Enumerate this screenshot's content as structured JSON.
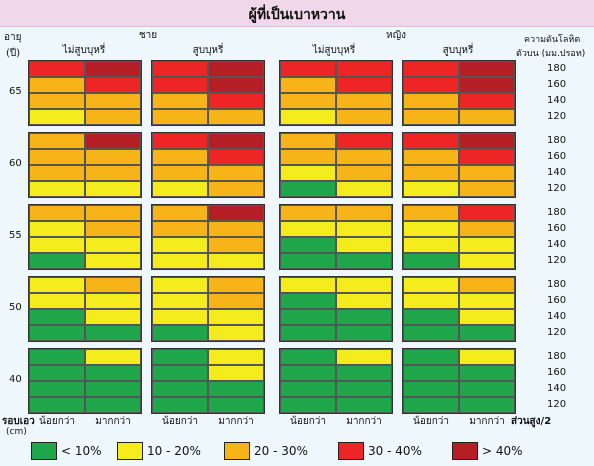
{
  "title": "ผู้ที่เป็นเบาหวาน",
  "labels": {
    "age_label": "อายุ",
    "age_unit": "(ปี)",
    "gender_male": "ชาย",
    "gender_female": "หญิง",
    "non_smoker": "ไม่สูบบุหรี่",
    "smoker": "สูบบุหรี่",
    "bp_label": "ความดันโลหิต",
    "bp_unit": "ตัวบน (มม.ปรอท)",
    "waist_label": "รอบเอว",
    "waist_unit": "(cm)",
    "waist_less": "น้อยกว่า",
    "waist_more": "มากกว่า",
    "height_ratio": "ส่วนสูง/2"
  },
  "legend": [
    {
      "label": "< 10%",
      "color": "#1fa64a"
    },
    {
      "label": "10 - 20%",
      "color": "#f5ec1e"
    },
    {
      "label": "20 - 30%",
      "color": "#f6b419"
    },
    {
      "label": "30 - 40%",
      "color": "#ee2525"
    },
    {
      "label": "> 40%",
      "color": "#b51e24"
    }
  ],
  "chart_data": {
    "type": "heatmap",
    "title": "ผู้ที่เป็นเบาหวาน",
    "risk_levels": [
      "< 10%",
      "10 - 20%",
      "20 - 30%",
      "30 - 40%",
      "> 40%"
    ],
    "ages": [
      "65",
      "60",
      "55",
      "50",
      "40"
    ],
    "blood_pressure": [
      "180",
      "160",
      "140",
      "120"
    ],
    "groups": [
      {
        "gender": "ชาย",
        "smoking": "ไม่สูบบุหรี่"
      },
      {
        "gender": "ชาย",
        "smoking": "สูบบุหรี่"
      },
      {
        "gender": "หญิง",
        "smoking": "ไม่สูบบุหรี่"
      },
      {
        "gender": "หญิง",
        "smoking": "สูบบุหรี่"
      }
    ],
    "waist": [
      "น้อยกว่า",
      "มากกว่า"
    ],
    "grid": [
      [
        [
          [
            3,
            4
          ],
          [
            2,
            3
          ],
          [
            2,
            2
          ],
          [
            1,
            2
          ]
        ],
        [
          [
            3,
            4
          ],
          [
            3,
            4
          ],
          [
            2,
            3
          ],
          [
            2,
            2
          ]
        ],
        [
          [
            3,
            3
          ],
          [
            2,
            3
          ],
          [
            2,
            2
          ],
          [
            1,
            2
          ]
        ],
        [
          [
            3,
            4
          ],
          [
            3,
            4
          ],
          [
            2,
            3
          ],
          [
            2,
            2
          ]
        ]
      ],
      [
        [
          [
            2,
            4
          ],
          [
            2,
            2
          ],
          [
            2,
            2
          ],
          [
            1,
            1
          ]
        ],
        [
          [
            3,
            4
          ],
          [
            2,
            3
          ],
          [
            2,
            2
          ],
          [
            1,
            2
          ]
        ],
        [
          [
            2,
            3
          ],
          [
            2,
            2
          ],
          [
            1,
            2
          ],
          [
            0,
            1
          ]
        ],
        [
          [
            3,
            4
          ],
          [
            2,
            3
          ],
          [
            2,
            2
          ],
          [
            1,
            2
          ]
        ]
      ],
      [
        [
          [
            2,
            2
          ],
          [
            1,
            2
          ],
          [
            1,
            1
          ],
          [
            0,
            1
          ]
        ],
        [
          [
            2,
            4
          ],
          [
            2,
            2
          ],
          [
            1,
            2
          ],
          [
            1,
            1
          ]
        ],
        [
          [
            2,
            2
          ],
          [
            1,
            1
          ],
          [
            0,
            1
          ],
          [
            0,
            0
          ]
        ],
        [
          [
            2,
            3
          ],
          [
            1,
            2
          ],
          [
            1,
            1
          ],
          [
            0,
            1
          ]
        ]
      ],
      [
        [
          [
            1,
            2
          ],
          [
            1,
            1
          ],
          [
            0,
            1
          ],
          [
            0,
            0
          ]
        ],
        [
          [
            1,
            2
          ],
          [
            1,
            2
          ],
          [
            1,
            1
          ],
          [
            0,
            1
          ]
        ],
        [
          [
            1,
            1
          ],
          [
            0,
            1
          ],
          [
            0,
            0
          ],
          [
            0,
            0
          ]
        ],
        [
          [
            1,
            2
          ],
          [
            1,
            1
          ],
          [
            0,
            1
          ],
          [
            0,
            0
          ]
        ]
      ],
      [
        [
          [
            0,
            1
          ],
          [
            0,
            0
          ],
          [
            0,
            0
          ],
          [
            0,
            0
          ]
        ],
        [
          [
            0,
            1
          ],
          [
            0,
            1
          ],
          [
            0,
            0
          ],
          [
            0,
            0
          ]
        ],
        [
          [
            0,
            1
          ],
          [
            0,
            0
          ],
          [
            0,
            0
          ],
          [
            0,
            0
          ]
        ],
        [
          [
            0,
            1
          ],
          [
            0,
            0
          ],
          [
            0,
            0
          ],
          [
            0,
            0
          ]
        ]
      ]
    ]
  }
}
